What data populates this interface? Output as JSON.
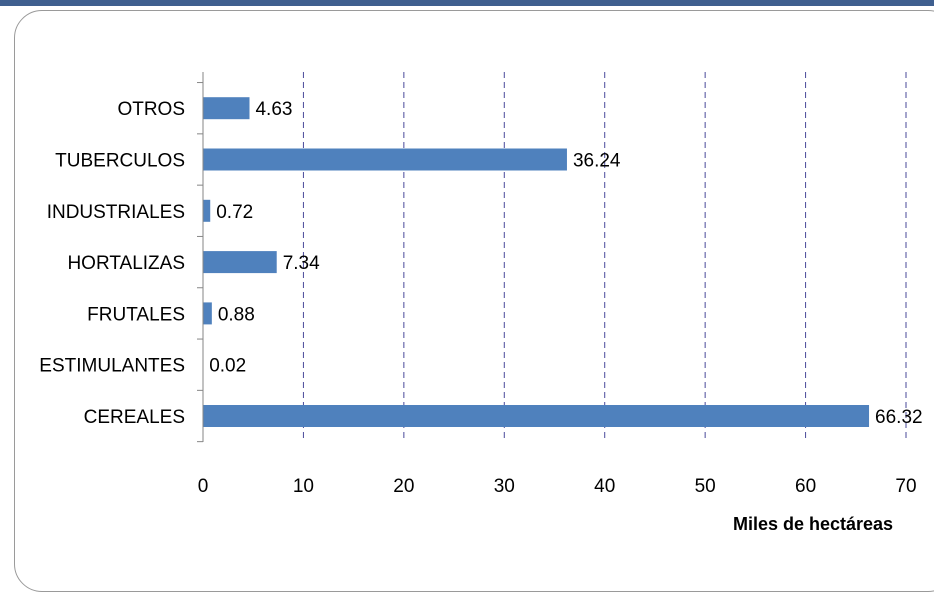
{
  "chart_data": {
    "type": "bar",
    "orientation": "horizontal",
    "categories": [
      "CEREALES",
      "ESTIMULANTES",
      "FRUTALES",
      "HORTALIZAS",
      "INDUSTRIALES",
      "TUBERCULOS",
      "OTROS"
    ],
    "values": [
      66.32,
      0.02,
      0.88,
      7.34,
      0.72,
      36.24,
      4.63
    ],
    "data_labels": [
      "66.32",
      "0.02",
      "0.88",
      "7.34",
      "0.72",
      "36.24",
      "4.63"
    ],
    "xlabel": "Miles de hectáreas",
    "ylabel": "",
    "title": "",
    "xlim": [
      0,
      70
    ],
    "xticks": [
      0,
      10,
      20,
      30,
      40,
      50,
      60,
      70
    ],
    "grid": "vertical dashed",
    "legend": "none",
    "bar_color": "#4f81bd",
    "grid_color": "#4a4a9a"
  }
}
